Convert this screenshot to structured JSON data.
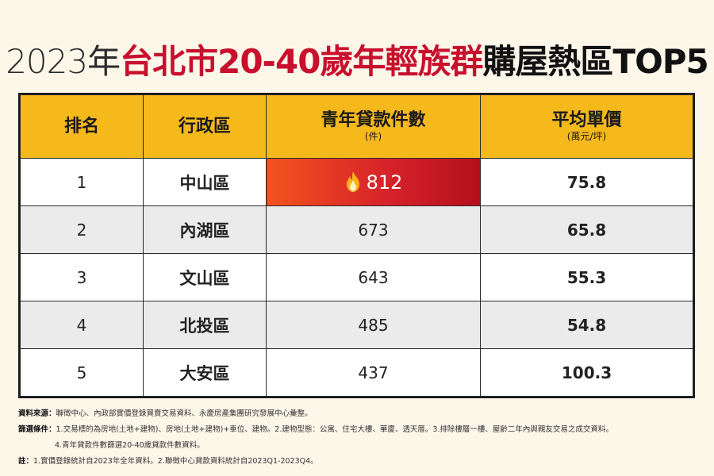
{
  "title": {
    "part1": "2023年",
    "part2": "台北市20-40歲年輕族群",
    "part3": "購屋熱區TOP5"
  },
  "chart_data": {
    "type": "table",
    "headers": {
      "rank": "排名",
      "district": "行政區",
      "count": "青年貸款件數",
      "count_unit": "(件)",
      "price": "平均單價",
      "price_unit": "(萬元/坪)"
    },
    "rows": [
      {
        "rank": "1",
        "district": "中山區",
        "count": "812",
        "price": "75.8"
      },
      {
        "rank": "2",
        "district": "內湖區",
        "count": "673",
        "price": "65.8"
      },
      {
        "rank": "3",
        "district": "文山區",
        "count": "643",
        "price": "55.3"
      },
      {
        "rank": "4",
        "district": "北投區",
        "count": "485",
        "price": "54.8"
      },
      {
        "rank": "5",
        "district": "大安區",
        "count": "437",
        "price": "100.3"
      }
    ],
    "highlight_color": "#d8232a",
    "header_color": "#f5b91c"
  },
  "notes": {
    "source_label": "資料來源：",
    "source_text": "聯徵中心、內政部實價登錄買賣交易資料、永慶房產集團研究發展中心彙整。",
    "filter_label": "篩選條件：",
    "filter_text": "1.交易標的為房地(土地+建物)、房地(土地+建物)+車位、建物。2.建物型態：公寓、住宅大樓、華廈、透天厝。3.排除樓層一樓、屋齡二年內與親友交易之成交資料。",
    "filter_text_2": "4.青年貸款件數篩選20-40歲貸款件數資料。",
    "note_label": "註：",
    "note_text": "1.實價登錄統計自2023年全年資料。2.聯徵中心貸款資料統計自2023Q1-2023Q4。"
  }
}
